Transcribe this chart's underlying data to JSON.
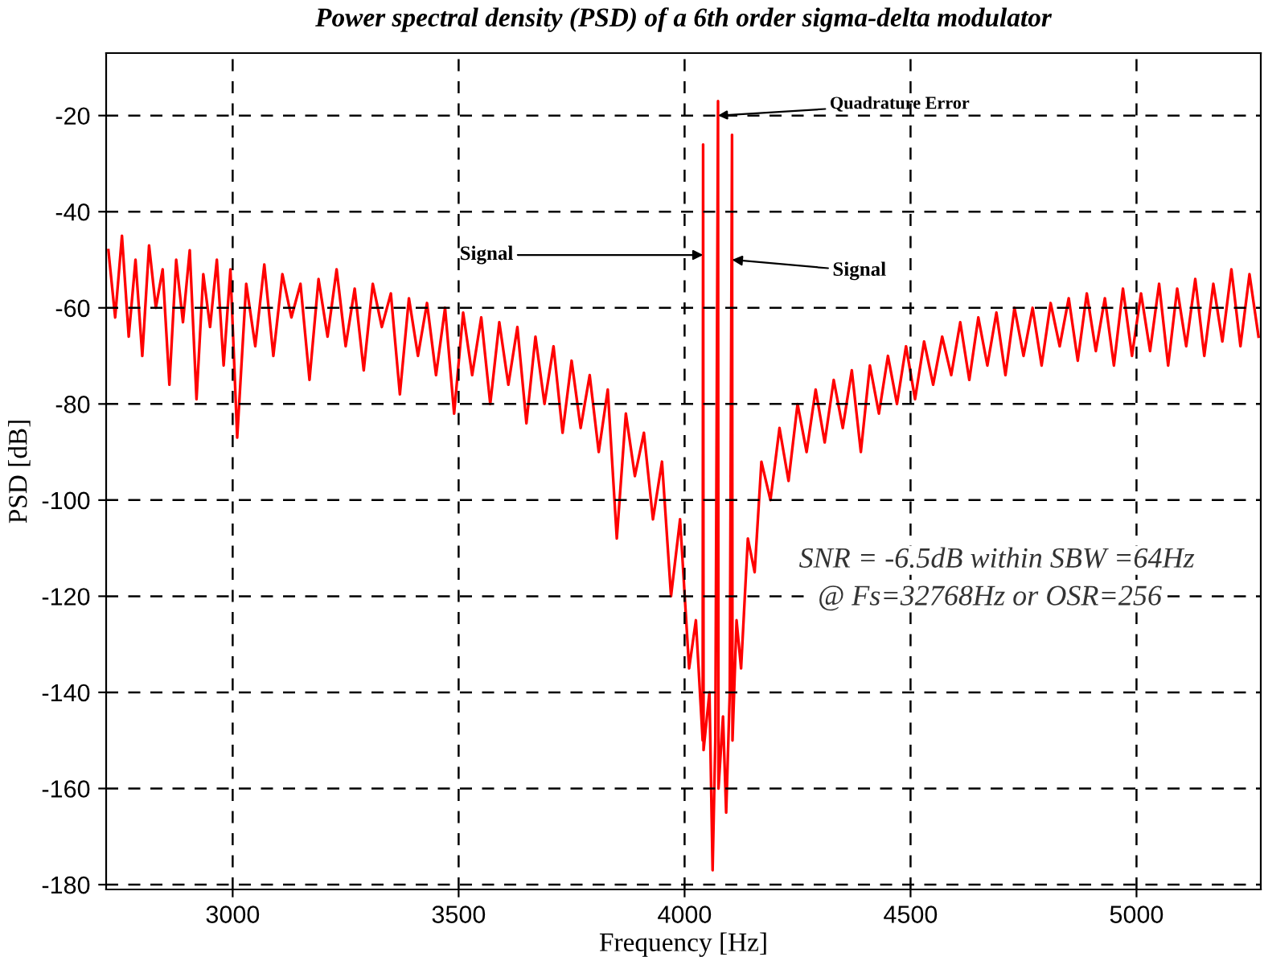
{
  "chart_data": {
    "type": "line",
    "title": "Power spectral density (PSD) of a 6th order sigma-delta modulator",
    "xlabel": "Frequency [Hz]",
    "ylabel": "PSD [dB]",
    "xlim": [
      2720,
      5275
    ],
    "ylim": [
      -181,
      -7
    ],
    "xticks": [
      3000,
      3500,
      4000,
      4500,
      5000
    ],
    "yticks": [
      -20,
      -40,
      -60,
      -80,
      -100,
      -120,
      -140,
      -160,
      -180
    ],
    "grid": true,
    "series": [
      {
        "color": "#ff0000",
        "x": [
          2725,
          2740,
          2755,
          2770,
          2785,
          2800,
          2815,
          2830,
          2845,
          2860,
          2875,
          2890,
          2905,
          2920,
          2935,
          2950,
          2965,
          2980,
          2995,
          3010,
          3030,
          3050,
          3070,
          3090,
          3110,
          3130,
          3150,
          3170,
          3190,
          3210,
          3230,
          3250,
          3270,
          3290,
          3310,
          3330,
          3350,
          3370,
          3390,
          3410,
          3430,
          3450,
          3470,
          3490,
          3510,
          3530,
          3550,
          3570,
          3590,
          3610,
          3630,
          3650,
          3670,
          3690,
          3710,
          3730,
          3750,
          3770,
          3790,
          3810,
          3830,
          3850,
          3870,
          3890,
          3910,
          3930,
          3950,
          3970,
          3990,
          4010,
          4025,
          4040,
          4041,
          4042,
          4055,
          4062,
          4068,
          4074,
          4075,
          4085,
          4092,
          4100,
          4105,
          4106,
          4115,
          4125,
          4140,
          4155,
          4170,
          4190,
          4210,
          4230,
          4250,
          4270,
          4290,
          4310,
          4330,
          4350,
          4370,
          4390,
          4410,
          4430,
          4450,
          4470,
          4490,
          4510,
          4530,
          4550,
          4570,
          4590,
          4610,
          4630,
          4650,
          4670,
          4690,
          4710,
          4730,
          4750,
          4770,
          4790,
          4810,
          4830,
          4850,
          4870,
          4890,
          4910,
          4930,
          4950,
          4970,
          4990,
          5010,
          5030,
          5050,
          5070,
          5090,
          5110,
          5130,
          5150,
          5170,
          5190,
          5210,
          5230,
          5250,
          5270
        ],
        "values": [
          -48,
          -62,
          -45,
          -66,
          -50,
          -70,
          -47,
          -60,
          -52,
          -76,
          -50,
          -63,
          -48,
          -79,
          -53,
          -64,
          -50,
          -72,
          -52,
          -87,
          -55,
          -68,
          -51,
          -70,
          -53,
          -62,
          -55,
          -75,
          -54,
          -66,
          -52,
          -68,
          -56,
          -73,
          -55,
          -64,
          -57,
          -78,
          -58,
          -70,
          -59,
          -74,
          -60,
          -82,
          -61,
          -74,
          -62,
          -80,
          -63,
          -76,
          -64,
          -84,
          -66,
          -80,
          -68,
          -86,
          -71,
          -85,
          -74,
          -90,
          -77,
          -108,
          -82,
          -95,
          -86,
          -104,
          -92,
          -120,
          -104,
          -135,
          -125,
          -150,
          -26,
          -152,
          -140,
          -177,
          -150,
          -17,
          -160,
          -145,
          -165,
          -140,
          -24,
          -150,
          -125,
          -135,
          -108,
          -115,
          -92,
          -100,
          -85,
          -96,
          -80,
          -90,
          -77,
          -88,
          -75,
          -85,
          -73,
          -90,
          -72,
          -82,
          -70,
          -80,
          -68,
          -79,
          -67,
          -76,
          -66,
          -74,
          -63,
          -75,
          -62,
          -72,
          -61,
          -74,
          -60,
          -70,
          -60,
          -72,
          -59,
          -68,
          -58,
          -71,
          -57,
          -69,
          -58,
          -72,
          -56,
          -70,
          -57,
          -69,
          -55,
          -72,
          -56,
          -68,
          -54,
          -70,
          -55,
          -67,
          -52,
          -68,
          -53,
          -66
        ]
      }
    ],
    "annotations": [
      {
        "text": "Signal",
        "x": 4041,
        "y": -49
      },
      {
        "text": "Signal",
        "x": 4105,
        "y": -50
      },
      {
        "text": "Quadrature Error",
        "x": 4074,
        "y": -20
      },
      "SNR = -6.5dB within SBW =64Hz",
      " @ Fs=32768Hz or OSR=256"
    ]
  }
}
